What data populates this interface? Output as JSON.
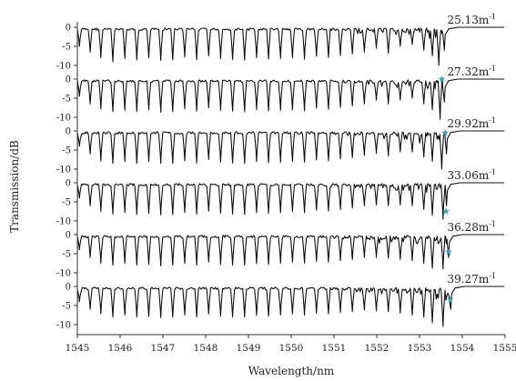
{
  "chart_data": {
    "type": "line",
    "xlabel": "Wavelength/nm",
    "ylabel": "Transmission/dB",
    "xlim": [
      1545,
      1555
    ],
    "x_ticks": [
      "1545",
      "1546",
      "1547",
      "1548",
      "1549",
      "1550",
      "1551",
      "1552",
      "1553",
      "1554",
      "1555"
    ],
    "y_ticks": [
      "0",
      "-5",
      "-10"
    ],
    "grid": false,
    "line_color": "#111111",
    "marker_color": "#3aa6b9",
    "series": [
      {
        "label": "25.13m",
        "label_exp": "-1",
        "ylim": [
          -10,
          0
        ],
        "marker_x": null,
        "marker_y": null,
        "dip_period_nm": 0.28,
        "edge_wavelength_nm": 1553.6,
        "dips": [
          [
            1545.05,
            -5
          ],
          [
            1545.3,
            -6.5
          ],
          [
            1545.55,
            -8
          ],
          [
            1545.83,
            -9
          ],
          [
            1546.11,
            -8.2
          ],
          [
            1546.39,
            -8.5
          ],
          [
            1546.67,
            -8
          ],
          [
            1546.95,
            -8.7
          ],
          [
            1547.23,
            -8.5
          ],
          [
            1547.51,
            -7.8
          ],
          [
            1547.79,
            -8.5
          ],
          [
            1548.07,
            -7.5
          ],
          [
            1548.35,
            -8.2
          ],
          [
            1548.63,
            -8.4
          ],
          [
            1548.91,
            -8.6
          ],
          [
            1549.19,
            -8
          ],
          [
            1549.47,
            -8.3
          ],
          [
            1549.75,
            -8.2
          ],
          [
            1550.03,
            -8
          ],
          [
            1550.31,
            -8.3
          ],
          [
            1550.59,
            -7.6
          ],
          [
            1550.87,
            -7.9
          ],
          [
            1551.15,
            -7.4
          ],
          [
            1551.43,
            -7
          ],
          [
            1551.71,
            -6.5
          ],
          [
            1551.99,
            -5.5
          ],
          [
            1552.27,
            -6.8
          ],
          [
            1552.55,
            -5
          ],
          [
            1552.83,
            -4.5
          ],
          [
            1553.1,
            -6
          ],
          [
            1553.3,
            -7.5
          ],
          [
            1553.45,
            -10
          ]
        ]
      },
      {
        "label": "27.32m",
        "label_exp": "-1",
        "ylim": [
          -10,
          0
        ],
        "marker_x": 1553.52,
        "marker_y": 0,
        "dip_period_nm": 0.28,
        "edge_wavelength_nm": 1553.6,
        "dips": [
          [
            1545.05,
            -4.5
          ],
          [
            1545.3,
            -6.5
          ],
          [
            1545.55,
            -7.8
          ],
          [
            1545.83,
            -8.5
          ],
          [
            1546.11,
            -8.2
          ],
          [
            1546.39,
            -8.5
          ],
          [
            1546.67,
            -8
          ],
          [
            1546.95,
            -8.7
          ],
          [
            1547.23,
            -8.5
          ],
          [
            1547.51,
            -7.8
          ],
          [
            1547.79,
            -8.4
          ],
          [
            1548.07,
            -7.5
          ],
          [
            1548.35,
            -8.2
          ],
          [
            1548.63,
            -8.4
          ],
          [
            1548.91,
            -8.6
          ],
          [
            1549.19,
            -8
          ],
          [
            1549.47,
            -8.3
          ],
          [
            1549.75,
            -8.2
          ],
          [
            1550.03,
            -8
          ],
          [
            1550.31,
            -8.3
          ],
          [
            1550.59,
            -7.6
          ],
          [
            1550.87,
            -7.9
          ],
          [
            1551.15,
            -7.4
          ],
          [
            1551.43,
            -7
          ],
          [
            1551.71,
            -6.5
          ],
          [
            1551.99,
            -5.5
          ],
          [
            1552.27,
            -6.5
          ],
          [
            1552.55,
            -5.5
          ],
          [
            1552.83,
            -5
          ],
          [
            1553.1,
            -6.5
          ],
          [
            1553.3,
            -8
          ],
          [
            1553.48,
            -10.5
          ]
        ]
      },
      {
        "label": "29.92m",
        "label_exp": "-1",
        "ylim": [
          -10,
          0
        ],
        "marker_x": 1553.6,
        "marker_y": -0.5,
        "dip_period_nm": 0.28,
        "edge_wavelength_nm": 1553.65,
        "dips": [
          [
            1545.05,
            -4
          ],
          [
            1545.3,
            -6
          ],
          [
            1545.55,
            -7.8
          ],
          [
            1545.83,
            -8.5
          ],
          [
            1546.11,
            -8
          ],
          [
            1546.39,
            -8.5
          ],
          [
            1546.67,
            -8
          ],
          [
            1546.95,
            -8.5
          ],
          [
            1547.23,
            -8.5
          ],
          [
            1547.51,
            -7.8
          ],
          [
            1547.79,
            -8.4
          ],
          [
            1548.07,
            -7.5
          ],
          [
            1548.35,
            -8.2
          ],
          [
            1548.63,
            -8.4
          ],
          [
            1548.91,
            -8.5
          ],
          [
            1549.19,
            -8
          ],
          [
            1549.47,
            -8.3
          ],
          [
            1549.75,
            -8.2
          ],
          [
            1550.03,
            -8
          ],
          [
            1550.31,
            -8.2
          ],
          [
            1550.59,
            -7.6
          ],
          [
            1550.87,
            -7.8
          ],
          [
            1551.15,
            -7.3
          ],
          [
            1551.43,
            -7
          ],
          [
            1551.71,
            -6.4
          ],
          [
            1551.99,
            -5.8
          ],
          [
            1552.27,
            -6.5
          ],
          [
            1552.55,
            -5.5
          ],
          [
            1552.83,
            -5.5
          ],
          [
            1553.1,
            -6.8
          ],
          [
            1553.3,
            -8
          ],
          [
            1553.52,
            -10
          ]
        ]
      },
      {
        "label": "33.06m",
        "label_exp": "-1",
        "ylim": [
          -10,
          0
        ],
        "marker_x": 1553.62,
        "marker_y": -7.5,
        "dip_period_nm": 0.28,
        "edge_wavelength_nm": 1553.65,
        "dips": [
          [
            1545.05,
            -4
          ],
          [
            1545.3,
            -6
          ],
          [
            1545.55,
            -7.5
          ],
          [
            1545.83,
            -8.2
          ],
          [
            1546.11,
            -7.8
          ],
          [
            1546.39,
            -8.3
          ],
          [
            1546.67,
            -8
          ],
          [
            1546.95,
            -8.4
          ],
          [
            1547.23,
            -8.3
          ],
          [
            1547.51,
            -7.8
          ],
          [
            1547.79,
            -8.2
          ],
          [
            1548.07,
            -7.4
          ],
          [
            1548.35,
            -8
          ],
          [
            1548.63,
            -8.2
          ],
          [
            1548.91,
            -8.3
          ],
          [
            1549.19,
            -7.8
          ],
          [
            1549.47,
            -8
          ],
          [
            1549.75,
            -7.8
          ],
          [
            1550.03,
            -7.5
          ],
          [
            1550.31,
            -7.8
          ],
          [
            1550.59,
            -7.2
          ],
          [
            1550.87,
            -7.4
          ],
          [
            1551.15,
            -7
          ],
          [
            1551.43,
            -6.6
          ],
          [
            1551.71,
            -6
          ],
          [
            1551.99,
            -5.8
          ],
          [
            1552.27,
            -6
          ],
          [
            1552.55,
            -5.8
          ],
          [
            1552.83,
            -6
          ],
          [
            1553.1,
            -7
          ],
          [
            1553.3,
            -8.5
          ],
          [
            1553.55,
            -9.5
          ]
        ]
      },
      {
        "label": "36.28m",
        "label_exp": "-1",
        "ylim": [
          -10,
          0
        ],
        "marker_x": 1553.68,
        "marker_y": -4.5,
        "dip_period_nm": 0.28,
        "edge_wavelength_nm": 1553.7,
        "dips": [
          [
            1545.05,
            -4
          ],
          [
            1545.3,
            -6
          ],
          [
            1545.55,
            -7.5
          ],
          [
            1545.83,
            -8
          ],
          [
            1546.11,
            -7.5
          ],
          [
            1546.39,
            -8
          ],
          [
            1546.67,
            -7.8
          ],
          [
            1546.95,
            -8.2
          ],
          [
            1547.23,
            -8
          ],
          [
            1547.51,
            -7.5
          ],
          [
            1547.79,
            -8
          ],
          [
            1548.07,
            -7.2
          ],
          [
            1548.35,
            -7.8
          ],
          [
            1548.63,
            -8
          ],
          [
            1548.91,
            -8
          ],
          [
            1549.19,
            -7.6
          ],
          [
            1549.47,
            -7.8
          ],
          [
            1549.75,
            -7.5
          ],
          [
            1550.03,
            -7.2
          ],
          [
            1550.31,
            -7.5
          ],
          [
            1550.59,
            -7
          ],
          [
            1550.87,
            -7.2
          ],
          [
            1551.15,
            -6.8
          ],
          [
            1551.43,
            -6.5
          ],
          [
            1551.71,
            -6
          ],
          [
            1551.99,
            -6
          ],
          [
            1552.27,
            -6.2
          ],
          [
            1552.55,
            -6.5
          ],
          [
            1552.83,
            -6.8
          ],
          [
            1553.1,
            -7.5
          ],
          [
            1553.3,
            -8.8
          ],
          [
            1553.55,
            -9
          ]
        ]
      },
      {
        "label": "39.27m",
        "label_exp": "-1",
        "ylim": [
          -10,
          0
        ],
        "marker_x": 1553.72,
        "marker_y": -3.5,
        "dip_period_nm": 0.28,
        "edge_wavelength_nm": 1553.75,
        "dips": [
          [
            1545.05,
            -4
          ],
          [
            1545.3,
            -6
          ],
          [
            1545.55,
            -7.2
          ],
          [
            1545.83,
            -8
          ],
          [
            1546.11,
            -7.5
          ],
          [
            1546.39,
            -8
          ],
          [
            1546.67,
            -7.8
          ],
          [
            1546.95,
            -8.2
          ],
          [
            1547.23,
            -8
          ],
          [
            1547.51,
            -7.5
          ],
          [
            1547.79,
            -8
          ],
          [
            1548.07,
            -7.2
          ],
          [
            1548.35,
            -7.8
          ],
          [
            1548.63,
            -8
          ],
          [
            1548.91,
            -8
          ],
          [
            1549.19,
            -7.6
          ],
          [
            1549.47,
            -7.8
          ],
          [
            1549.75,
            -7.5
          ],
          [
            1550.03,
            -7.2
          ],
          [
            1550.31,
            -7.5
          ],
          [
            1550.59,
            -7
          ],
          [
            1550.87,
            -7.2
          ],
          [
            1551.15,
            -6.8
          ],
          [
            1551.43,
            -6.6
          ],
          [
            1551.71,
            -6.2
          ],
          [
            1551.99,
            -6.4
          ],
          [
            1552.27,
            -6.6
          ],
          [
            1552.55,
            -7
          ],
          [
            1552.83,
            -7.5
          ],
          [
            1553.1,
            -8
          ],
          [
            1553.3,
            -9.5
          ],
          [
            1553.55,
            -10.5
          ]
        ]
      }
    ]
  }
}
